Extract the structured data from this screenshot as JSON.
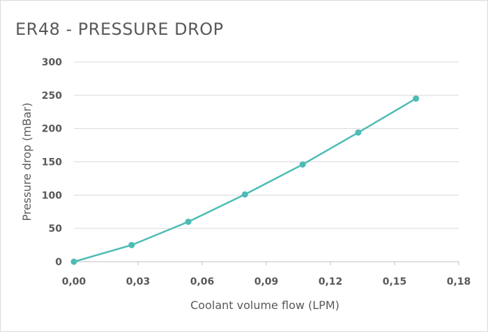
{
  "chart_data": {
    "type": "line",
    "title": "ER48 - PRESSURE DROP",
    "xlabel": "Coolant volume flow (LPM)",
    "ylabel": "Pressure drop (mBar)",
    "xlim": [
      0,
      0.18
    ],
    "ylim": [
      0,
      300
    ],
    "x_ticks": [
      0,
      0.03,
      0.06,
      0.09,
      0.12,
      0.15,
      0.18
    ],
    "x_tick_labels": [
      "0,00",
      "0,03",
      "0,06",
      "0,09",
      "0,12",
      "0,15",
      "0,18"
    ],
    "y_ticks": [
      0,
      50,
      100,
      150,
      200,
      250,
      300
    ],
    "y_tick_labels": [
      "0",
      "50",
      "100",
      "150",
      "200",
      "250",
      "300"
    ],
    "grid": "horizontal",
    "legend": "none",
    "series": [
      {
        "color": "#4dbbb6",
        "x": [
          0.0,
          0.027,
          0.0535,
          0.08,
          0.107,
          0.133,
          0.16
        ],
        "y": [
          0,
          25,
          60,
          101,
          146,
          194,
          245
        ]
      }
    ]
  }
}
